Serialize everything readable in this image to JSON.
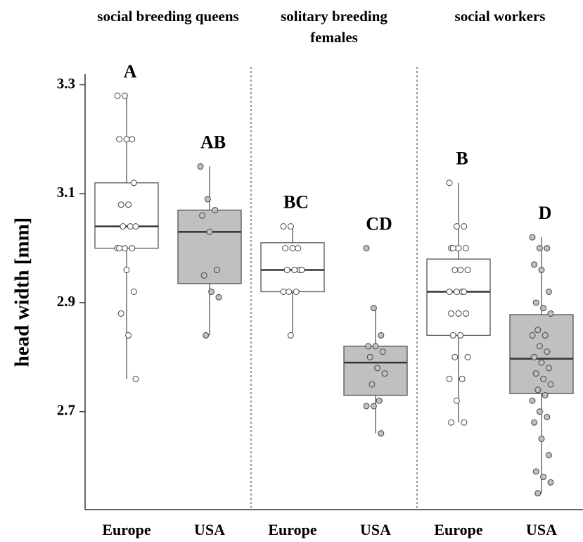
{
  "chart_data": {
    "type": "box",
    "ylabel": "head width [mm]",
    "ylim": [
      2.52,
      3.32
    ],
    "yticks": [
      2.7,
      2.9,
      3.1,
      3.3
    ],
    "groups": [
      "social breeding queens",
      "solitary breeding females",
      "social workers"
    ],
    "categories": [
      "Europe",
      "USA",
      "Europe",
      "USA",
      "Europe",
      "USA"
    ],
    "annotations": [
      "A",
      "AB",
      "BC",
      "CD",
      "B",
      "D"
    ],
    "boxes": [
      {
        "color": "#ffffff",
        "q1": 3.0,
        "median": 3.04,
        "q3": 3.12,
        "whisker_low": 2.76,
        "whisker_high": 3.28,
        "points": [
          3.28,
          3.28,
          3.2,
          3.2,
          3.2,
          3.12,
          3.08,
          3.08,
          3.04,
          3.04,
          3.04,
          3.0,
          3.0,
          3.0,
          3.0,
          2.96,
          2.92,
          2.88,
          2.84,
          2.76
        ]
      },
      {
        "color": "#c0c0c0",
        "q1": 2.935,
        "median": 3.03,
        "q3": 3.07,
        "whisker_low": 2.84,
        "whisker_high": 3.15,
        "points": [
          3.15,
          3.09,
          3.07,
          3.06,
          3.03,
          2.96,
          2.95,
          2.92,
          2.91,
          2.84
        ]
      },
      {
        "color": "#ffffff",
        "q1": 2.92,
        "median": 2.96,
        "q3": 3.01,
        "whisker_low": 2.84,
        "whisker_high": 3.04,
        "points": [
          3.04,
          3.04,
          3.0,
          3.0,
          3.0,
          2.96,
          2.96,
          2.96,
          2.96,
          2.92,
          2.92,
          2.92,
          2.84
        ]
      },
      {
        "color": "#c0c0c0",
        "q1": 2.73,
        "median": 2.79,
        "q3": 2.82,
        "whisker_low": 2.66,
        "whisker_high": 2.89,
        "points": [
          3.0,
          2.89,
          2.84,
          2.82,
          2.82,
          2.81,
          2.8,
          2.78,
          2.77,
          2.75,
          2.72,
          2.71,
          2.71,
          2.66
        ]
      },
      {
        "color": "#ffffff",
        "q1": 2.84,
        "median": 2.92,
        "q3": 2.98,
        "whisker_low": 2.68,
        "whisker_high": 3.12,
        "points": [
          3.12,
          3.04,
          3.04,
          3.0,
          3.0,
          3.0,
          3.0,
          2.96,
          2.96,
          2.96,
          2.92,
          2.92,
          2.92,
          2.92,
          2.88,
          2.88,
          2.88,
          2.84,
          2.84,
          2.8,
          2.8,
          2.76,
          2.76,
          2.72,
          2.68,
          2.68
        ]
      },
      {
        "color": "#c0c0c0",
        "q1": 2.733,
        "median": 2.797,
        "q3": 2.878,
        "whisker_low": 2.55,
        "whisker_high": 3.02,
        "points": [
          3.02,
          3.0,
          3.0,
          2.97,
          2.96,
          2.92,
          2.9,
          2.89,
          2.88,
          2.85,
          2.84,
          2.84,
          2.82,
          2.81,
          2.8,
          2.79,
          2.78,
          2.77,
          2.76,
          2.75,
          2.74,
          2.73,
          2.72,
          2.7,
          2.69,
          2.68,
          2.65,
          2.62,
          2.59,
          2.58,
          2.57,
          2.55
        ]
      }
    ]
  }
}
